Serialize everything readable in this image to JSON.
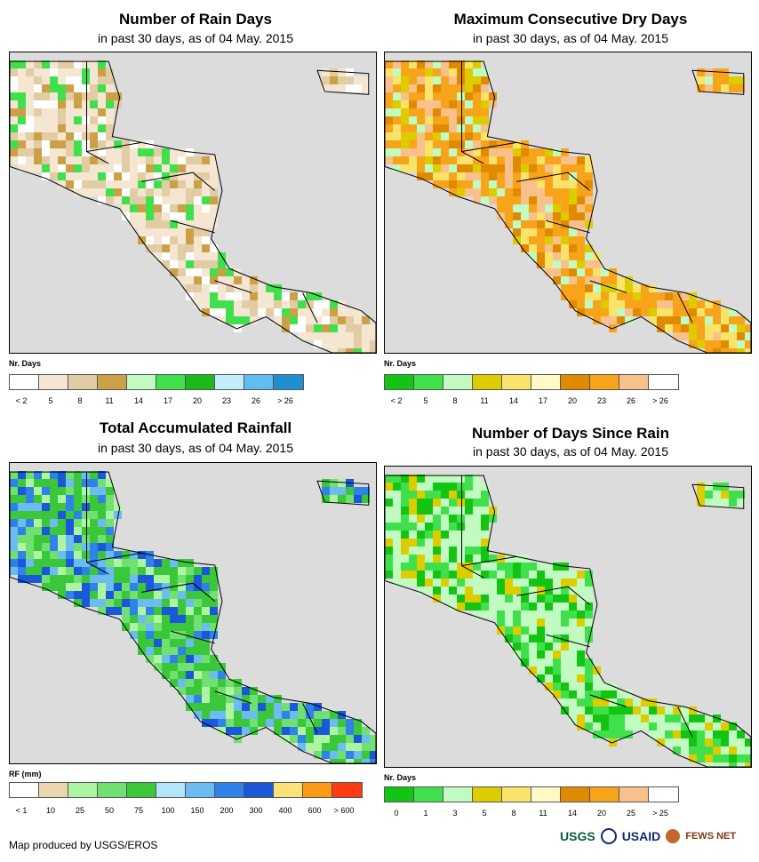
{
  "panels": [
    {
      "title": "Number of Rain Days",
      "subtitle": "in past 30 days, as of 04 May. 2015",
      "legend_title": "Nr. Days",
      "legend_colors": [
        "#ffffff",
        "#f5e6d2",
        "#e2cca4",
        "#cba046",
        "#c1fbc2",
        "#40e04c",
        "#1cb81c",
        "#c1eefb",
        "#5fbdf0",
        "#1f8fd0"
      ],
      "legend_labels": [
        "< 2",
        "5",
        "8",
        "11",
        "14",
        "17",
        "20",
        "23",
        "26",
        "> 26"
      ],
      "land_colors": [
        "#f5e6d2",
        "#e2cca4",
        "#ffffff",
        "#cba046",
        "#40e04c"
      ],
      "ocean_color": "#dcdcdc"
    },
    {
      "title": "Maximum Consecutive Dry Days",
      "subtitle": "in past 30 days, as of 04 May. 2015",
      "legend_title": "Nr. Days",
      "legend_colors": [
        "#13c413",
        "#40e04c",
        "#c1fbc2",
        "#dccc00",
        "#fae36a",
        "#fff9c8",
        "#e08a00",
        "#f8a41a",
        "#f8c08a",
        "#ffffff"
      ],
      "legend_labels": [
        "< 2",
        "5",
        "8",
        "11",
        "14",
        "17",
        "20",
        "23",
        "26",
        "> 26"
      ],
      "land_colors": [
        "#f8a41a",
        "#f8c08a",
        "#fae36a",
        "#c1fbc2",
        "#e08a00",
        "#dccc00"
      ],
      "ocean_color": "#dcdcdc"
    },
    {
      "title": "Total Accumulated Rainfall",
      "subtitle": "in past 30 days, as of 04 May. 2015",
      "legend_title": "RF (mm)",
      "legend_colors": [
        "#ffffff",
        "#ebd6b0",
        "#aef5a2",
        "#70e070",
        "#3ac83a",
        "#b4e6fb",
        "#6cbcf0",
        "#2f82e8",
        "#1b58d9",
        "#fbe278",
        "#fa9a14",
        "#fa3c10"
      ],
      "legend_labels": [
        "< 1",
        "10",
        "25",
        "50",
        "75",
        "100",
        "150",
        "200",
        "300",
        "400",
        "600",
        "> 600"
      ],
      "land_colors": [
        "#3ac83a",
        "#70e070",
        "#6cbcf0",
        "#2f82e8",
        "#aef5a2",
        "#1b58d9"
      ],
      "ocean_color": "#dcdcdc"
    },
    {
      "title": "Number of Days Since Rain",
      "subtitle": "in past 30 days, as of 04 May. 2015",
      "legend_title": "Nr. Days",
      "legend_colors": [
        "#13c413",
        "#40e04c",
        "#c1fbc2",
        "#dccc00",
        "#fae36a",
        "#fff9c8",
        "#e08a00",
        "#f8a41a",
        "#f8c08a",
        "#ffffff"
      ],
      "legend_labels": [
        "0",
        "1",
        "3",
        "5",
        "8",
        "11",
        "14",
        "20",
        "25",
        "> 25"
      ],
      "land_colors": [
        "#c1fbc2",
        "#40e04c",
        "#13c413",
        "#dccc00"
      ],
      "ocean_color": "#dcdcdc"
    }
  ],
  "footer": {
    "credit": "Map produced by USGS/EROS"
  },
  "logos": {
    "usgs": "USGS",
    "usaid": "USAID",
    "fews": "FEWS NET"
  }
}
